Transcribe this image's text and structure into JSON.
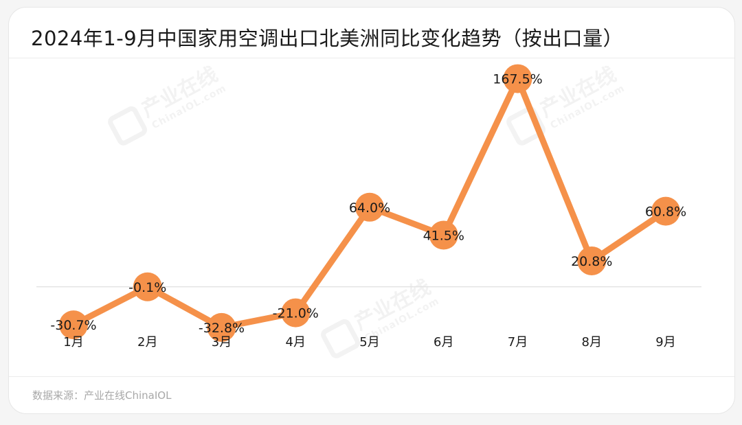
{
  "title": "2024年1-9月中国家用空调出口北美洲同比变化趋势（按出口量）",
  "source": "数据来源：产业在线ChinaIOL",
  "watermark": {
    "brand": "产业在线",
    "domain": "ChinaIOL.com"
  },
  "colors": {
    "line": "#f5914a",
    "marker": "#f5914a",
    "label": "#1a1a1a",
    "zero_line": "#e3e3e3"
  },
  "chart_data": {
    "type": "line",
    "categories": [
      "1月",
      "2月",
      "3月",
      "4月",
      "5月",
      "6月",
      "7月",
      "8月",
      "9月"
    ],
    "series": [
      {
        "values": [
          -30.7,
          -0.1,
          -32.8,
          -21.0,
          64.0,
          41.5,
          167.5,
          20.8,
          60.8
        ],
        "labels": [
          "-30.7%",
          "-0.1%",
          "-32.8%",
          "-21.0%",
          "64.0%",
          "41.5%",
          "167.5%",
          "20.8%",
          "60.8%"
        ]
      }
    ],
    "unit": "%",
    "data_labels": true,
    "markers": true,
    "grid": false,
    "legend": "none",
    "ylim": [
      -45,
      175
    ]
  }
}
